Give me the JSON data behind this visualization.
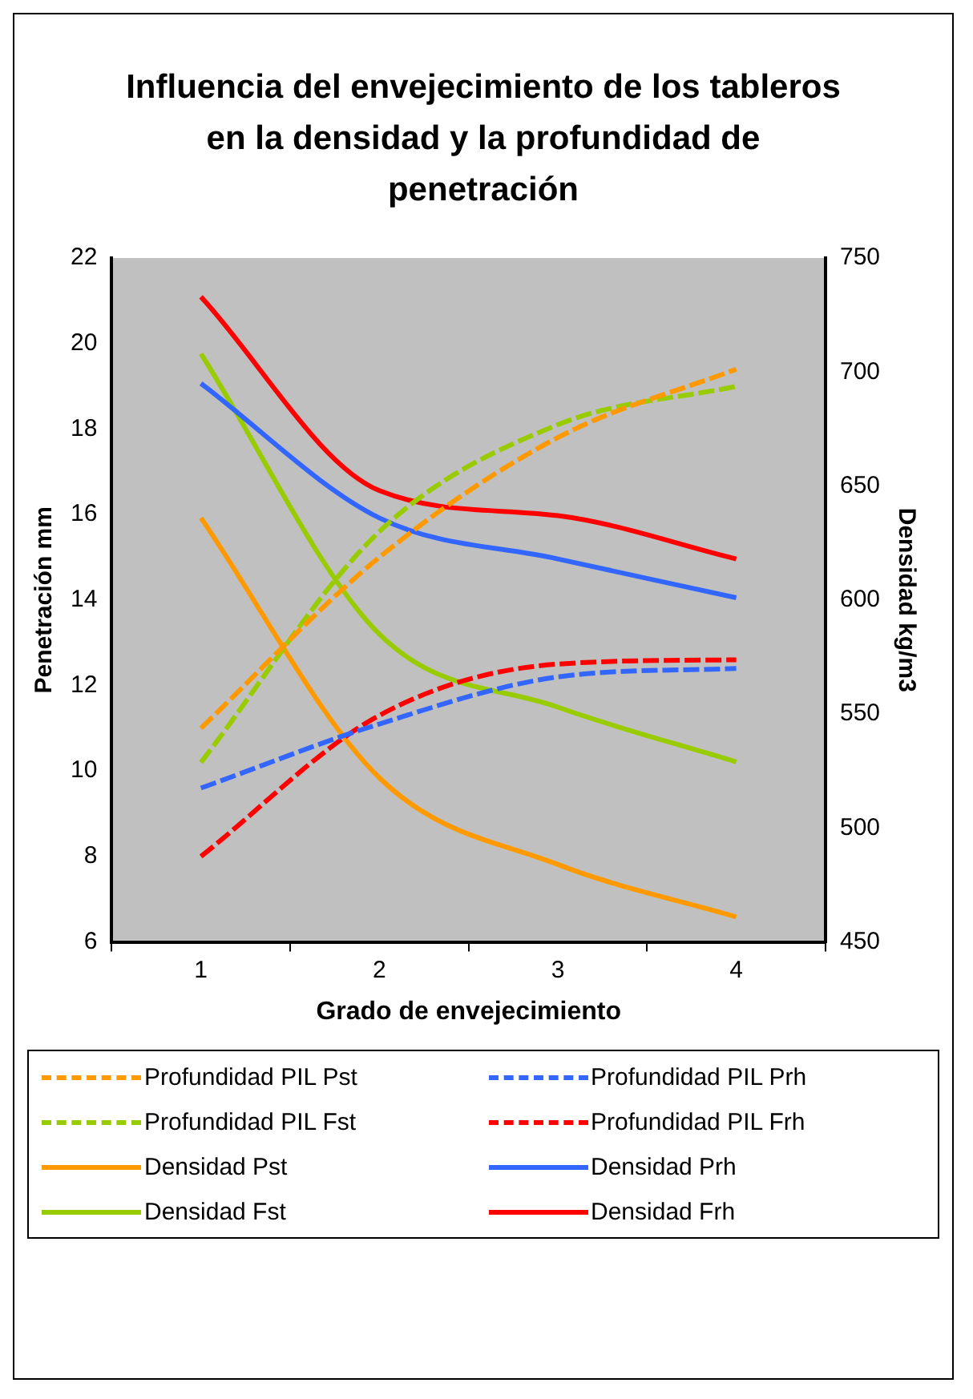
{
  "chart_data": {
    "type": "line",
    "title": "Influencia del envejecimiento de los tableros en la densidad y la profundidad de penetración",
    "xlabel": "Grado de envejecimiento",
    "ylabel": "Penetración mm",
    "y2label": "Densidad kg/m3",
    "categories": [
      "1",
      "2",
      "3",
      "4"
    ],
    "ylim": [
      6,
      22
    ],
    "yticks": [
      6,
      8,
      10,
      12,
      14,
      16,
      18,
      20,
      22
    ],
    "y2lim": [
      450,
      750
    ],
    "y2ticks": [
      450,
      500,
      550,
      600,
      650,
      700,
      750
    ],
    "grid": false,
    "legend": "bottom",
    "marker": "none",
    "series": [
      {
        "name": "Profundidad PIL Pst",
        "color": "#ff9900",
        "line_style": "dashed",
        "values": [
          11.0,
          15.0,
          17.8,
          19.4
        ]
      },
      {
        "name": "Profundidad PIL Prh",
        "color": "#3366ff",
        "line_style": "dashed",
        "values": [
          9.6,
          11.1,
          12.2,
          12.4
        ]
      },
      {
        "name": "Profundidad PIL Fst",
        "color": "#99cc00",
        "line_style": "dashed",
        "values": [
          10.2,
          15.6,
          18.1,
          19.0
        ]
      },
      {
        "name": "Profundidad PIL Frh",
        "color": "#ff0000",
        "line_style": "dashed",
        "values": [
          8.0,
          11.3,
          12.5,
          12.6
        ]
      },
      {
        "name": "Densidad Pst",
        "color": "#ff9900",
        "line_style": "solid",
        "axis": "y2",
        "values": [
          636,
          522,
          484,
          461
        ]
      },
      {
        "name": "Densidad Prh",
        "color": "#3366ff",
        "line_style": "solid",
        "axis": "y2",
        "values": [
          695,
          636,
          618,
          601
        ]
      },
      {
        "name": "Densidad Fst",
        "color": "#99cc00",
        "line_style": "solid",
        "axis": "y2",
        "values": [
          708,
          585,
          553,
          529
        ]
      },
      {
        "name": "Densidad Frh",
        "color": "#ff0000",
        "line_style": "solid",
        "axis": "y2",
        "values": [
          733,
          648,
          637,
          618
        ]
      }
    ]
  }
}
